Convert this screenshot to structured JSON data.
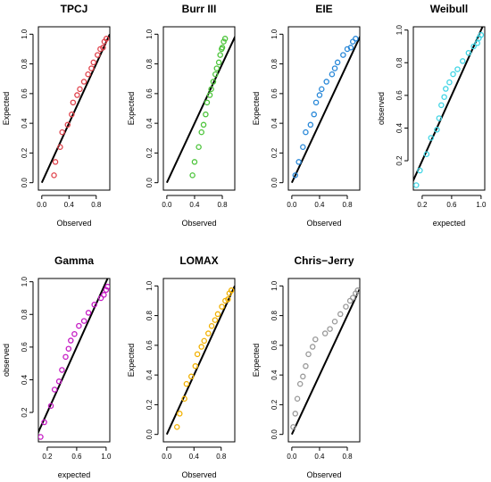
{
  "chart_data": [
    {
      "type": "scatter",
      "title": "TPCJ",
      "xlabel": "Observed",
      "ylabel": "Expected",
      "xlim": [
        -0.05,
        1.0
      ],
      "ylim": [
        -0.05,
        1.05
      ],
      "xticks": [
        "0.0",
        "0.4",
        "0.8"
      ],
      "xtick_values": [
        0.0,
        0.4,
        0.8
      ],
      "yticks": [
        "0.0",
        "0.2",
        "0.4",
        "0.6",
        "0.8",
        "1.0"
      ],
      "ytick_values": [
        0.0,
        0.2,
        0.4,
        0.6,
        0.8,
        1.0
      ],
      "marker_color": "#e0424b",
      "reference_line": [
        [
          0,
          0
        ],
        [
          1,
          1
        ]
      ],
      "points": [
        [
          0.18,
          0.05
        ],
        [
          0.2,
          0.14
        ],
        [
          0.27,
          0.24
        ],
        [
          0.3,
          0.34
        ],
        [
          0.38,
          0.39
        ],
        [
          0.44,
          0.46
        ],
        [
          0.46,
          0.54
        ],
        [
          0.52,
          0.59
        ],
        [
          0.56,
          0.63
        ],
        [
          0.62,
          0.68
        ],
        [
          0.68,
          0.73
        ],
        [
          0.73,
          0.77
        ],
        [
          0.76,
          0.81
        ],
        [
          0.82,
          0.86
        ],
        [
          0.86,
          0.9
        ],
        [
          0.9,
          0.91
        ],
        [
          0.92,
          0.95
        ],
        [
          0.95,
          0.97
        ]
      ]
    },
    {
      "type": "scatter",
      "title": "Burr III",
      "xlabel": "Observed",
      "ylabel": "Expected",
      "xlim": [
        -0.05,
        0.98
      ],
      "ylim": [
        -0.05,
        1.05
      ],
      "xticks": [
        "0.0",
        "0.4",
        "0.8"
      ],
      "xtick_values": [
        0.0,
        0.4,
        0.8
      ],
      "yticks": [
        "0.0",
        "0.2",
        "0.4",
        "0.6",
        "0.8",
        "1.0"
      ],
      "ytick_values": [
        0.0,
        0.2,
        0.4,
        0.6,
        0.8,
        1.0
      ],
      "marker_color": "#4cc43a",
      "reference_line": [
        [
          0,
          0
        ],
        [
          1,
          1
        ]
      ],
      "points": [
        [
          0.37,
          0.05
        ],
        [
          0.4,
          0.14
        ],
        [
          0.46,
          0.24
        ],
        [
          0.5,
          0.34
        ],
        [
          0.53,
          0.39
        ],
        [
          0.56,
          0.46
        ],
        [
          0.58,
          0.54
        ],
        [
          0.62,
          0.59
        ],
        [
          0.64,
          0.63
        ],
        [
          0.67,
          0.68
        ],
        [
          0.7,
          0.73
        ],
        [
          0.72,
          0.77
        ],
        [
          0.75,
          0.81
        ],
        [
          0.77,
          0.86
        ],
        [
          0.79,
          0.9
        ],
        [
          0.8,
          0.91
        ],
        [
          0.82,
          0.95
        ],
        [
          0.84,
          0.97
        ]
      ]
    },
    {
      "type": "scatter",
      "title": "EIE",
      "xlabel": "Observed",
      "ylabel": "Expected",
      "xlim": [
        -0.05,
        0.98
      ],
      "ylim": [
        -0.05,
        1.05
      ],
      "xticks": [
        "0.0",
        "0.4",
        "0.8"
      ],
      "xtick_values": [
        0.0,
        0.4,
        0.8
      ],
      "yticks": [
        "0.0",
        "0.2",
        "0.4",
        "0.6",
        "0.8",
        "1.0"
      ],
      "ytick_values": [
        0.0,
        0.2,
        0.4,
        0.6,
        0.8,
        1.0
      ],
      "marker_color": "#2787d8",
      "reference_line": [
        [
          0,
          0
        ],
        [
          1,
          1
        ]
      ],
      "points": [
        [
          0.05,
          0.05
        ],
        [
          0.1,
          0.14
        ],
        [
          0.16,
          0.24
        ],
        [
          0.2,
          0.34
        ],
        [
          0.27,
          0.39
        ],
        [
          0.32,
          0.46
        ],
        [
          0.35,
          0.54
        ],
        [
          0.4,
          0.59
        ],
        [
          0.43,
          0.63
        ],
        [
          0.5,
          0.68
        ],
        [
          0.58,
          0.73
        ],
        [
          0.62,
          0.77
        ],
        [
          0.66,
          0.81
        ],
        [
          0.74,
          0.86
        ],
        [
          0.8,
          0.9
        ],
        [
          0.85,
          0.91
        ],
        [
          0.88,
          0.95
        ],
        [
          0.92,
          0.97
        ]
      ]
    },
    {
      "type": "scatter",
      "title": "Weibull",
      "xlabel": "expected",
      "ylabel": "observed",
      "xlim": [
        0.08,
        1.05
      ],
      "ylim": [
        0.02,
        1.02
      ],
      "xticks": [
        "0.2",
        "0.6",
        "1.0"
      ],
      "xtick_values": [
        0.2,
        0.6,
        1.0
      ],
      "yticks": [
        "0.2",
        "0.4",
        "0.6",
        "0.8",
        "1.0"
      ],
      "ytick_values": [
        0.2,
        0.4,
        0.6,
        0.8,
        1.0
      ],
      "marker_color": "#3fd5e5",
      "reference_line": [
        [
          0,
          0
        ],
        [
          1.05,
          1.05
        ]
      ],
      "points": [
        [
          0.12,
          0.05
        ],
        [
          0.17,
          0.14
        ],
        [
          0.26,
          0.24
        ],
        [
          0.32,
          0.34
        ],
        [
          0.4,
          0.39
        ],
        [
          0.43,
          0.46
        ],
        [
          0.46,
          0.54
        ],
        [
          0.5,
          0.59
        ],
        [
          0.52,
          0.64
        ],
        [
          0.57,
          0.68
        ],
        [
          0.62,
          0.73
        ],
        [
          0.68,
          0.76
        ],
        [
          0.75,
          0.81
        ],
        [
          0.83,
          0.86
        ],
        [
          0.9,
          0.9
        ],
        [
          0.95,
          0.92
        ],
        [
          0.97,
          0.95
        ],
        [
          1.0,
          0.97
        ]
      ]
    },
    {
      "type": "scatter",
      "title": "Gamma",
      "xlabel": "expected",
      "ylabel": "observed",
      "xlim": [
        0.08,
        1.05
      ],
      "ylim": [
        0.02,
        1.02
      ],
      "xticks": [
        "0.2",
        "0.6",
        "1.0"
      ],
      "xtick_values": [
        0.2,
        0.6,
        1.0
      ],
      "yticks": [
        "0.2",
        "0.4",
        "0.6",
        "0.8",
        "1.0"
      ],
      "ytick_values": [
        0.2,
        0.4,
        0.6,
        0.8,
        1.0
      ],
      "marker_color": "#c51ac4",
      "reference_line": [
        [
          0,
          0
        ],
        [
          1.05,
          1.05
        ]
      ],
      "points": [
        [
          0.11,
          0.05
        ],
        [
          0.16,
          0.14
        ],
        [
          0.25,
          0.24
        ],
        [
          0.3,
          0.34
        ],
        [
          0.36,
          0.39
        ],
        [
          0.4,
          0.46
        ],
        [
          0.45,
          0.54
        ],
        [
          0.49,
          0.59
        ],
        [
          0.52,
          0.64
        ],
        [
          0.57,
          0.68
        ],
        [
          0.63,
          0.73
        ],
        [
          0.7,
          0.76
        ],
        [
          0.76,
          0.81
        ],
        [
          0.84,
          0.86
        ],
        [
          0.93,
          0.9
        ],
        [
          0.97,
          0.92
        ],
        [
          1.0,
          0.95
        ],
        [
          1.02,
          0.97
        ]
      ]
    },
    {
      "type": "scatter",
      "title": "LOMAX",
      "xlabel": "Observed",
      "ylabel": "Expected",
      "xlim": [
        -0.05,
        1.0
      ],
      "ylim": [
        -0.05,
        1.05
      ],
      "xticks": [
        "0.0",
        "0.4",
        "0.8"
      ],
      "xtick_values": [
        0.0,
        0.4,
        0.8
      ],
      "yticks": [
        "0.0",
        "0.2",
        "0.4",
        "0.6",
        "0.8",
        "1.0"
      ],
      "ytick_values": [
        0.0,
        0.2,
        0.4,
        0.6,
        0.8,
        1.0
      ],
      "marker_color": "#f2b100",
      "reference_line": [
        [
          0,
          0
        ],
        [
          1,
          1
        ]
      ],
      "points": [
        [
          0.15,
          0.05
        ],
        [
          0.19,
          0.14
        ],
        [
          0.26,
          0.24
        ],
        [
          0.29,
          0.34
        ],
        [
          0.36,
          0.39
        ],
        [
          0.42,
          0.46
        ],
        [
          0.45,
          0.54
        ],
        [
          0.51,
          0.59
        ],
        [
          0.55,
          0.63
        ],
        [
          0.61,
          0.68
        ],
        [
          0.66,
          0.73
        ],
        [
          0.71,
          0.77
        ],
        [
          0.75,
          0.81
        ],
        [
          0.81,
          0.86
        ],
        [
          0.86,
          0.9
        ],
        [
          0.9,
          0.91
        ],
        [
          0.92,
          0.95
        ],
        [
          0.95,
          0.97
        ]
      ]
    },
    {
      "type": "scatter",
      "title": "Chris−Jerry",
      "xlabel": "Observed",
      "ylabel": "Expected",
      "xlim": [
        -0.05,
        0.98
      ],
      "ylim": [
        -0.05,
        1.05
      ],
      "xticks": [
        "0.0",
        "0.4",
        "0.8"
      ],
      "xtick_values": [
        0.0,
        0.4,
        0.8
      ],
      "yticks": [
        "0.0",
        "0.2",
        "0.4",
        "0.6",
        "0.8",
        "1.0"
      ],
      "ytick_values": [
        0.0,
        0.2,
        0.4,
        0.6,
        0.8,
        1.0
      ],
      "marker_color": "#999999",
      "reference_line": [
        [
          0,
          0
        ],
        [
          1,
          1
        ]
      ],
      "points": [
        [
          0.02,
          0.05
        ],
        [
          0.05,
          0.14
        ],
        [
          0.08,
          0.24
        ],
        [
          0.12,
          0.34
        ],
        [
          0.16,
          0.39
        ],
        [
          0.2,
          0.46
        ],
        [
          0.24,
          0.54
        ],
        [
          0.3,
          0.59
        ],
        [
          0.34,
          0.64
        ],
        [
          0.48,
          0.68
        ],
        [
          0.55,
          0.71
        ],
        [
          0.62,
          0.76
        ],
        [
          0.7,
          0.81
        ],
        [
          0.78,
          0.86
        ],
        [
          0.84,
          0.9
        ],
        [
          0.88,
          0.92
        ],
        [
          0.92,
          0.95
        ],
        [
          0.95,
          0.97
        ]
      ]
    }
  ]
}
